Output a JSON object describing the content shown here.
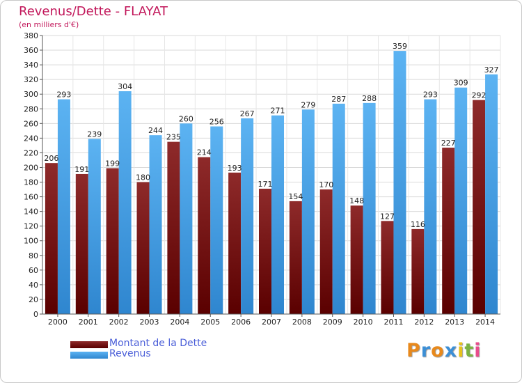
{
  "chart_data": {
    "type": "bar",
    "title": "Revenus/Dette - FLAYAT",
    "subtitle": "(en milliers d'€)",
    "categories": [
      "2000",
      "2001",
      "2002",
      "2003",
      "2004",
      "2005",
      "2006",
      "2007",
      "2008",
      "2009",
      "2010",
      "2011",
      "2012",
      "2013",
      "2014"
    ],
    "series": [
      {
        "name": "Montant de la Dette",
        "color": "#7b1a1a",
        "values": [
          206,
          191,
          199,
          180,
          235,
          214,
          193,
          171,
          154,
          170,
          148,
          127,
          116,
          227,
          292
        ]
      },
      {
        "name": "Revenus",
        "color": "#4aa3e6",
        "values": [
          293,
          239,
          304,
          244,
          260,
          256,
          267,
          271,
          279,
          287,
          288,
          359,
          293,
          309,
          327
        ]
      }
    ],
    "ylim": [
      0,
      380
    ],
    "yticks": [
      0,
      20,
      40,
      60,
      80,
      100,
      120,
      140,
      160,
      180,
      200,
      220,
      240,
      260,
      280,
      300,
      320,
      340,
      360,
      380
    ],
    "grid": true,
    "legend_placement": "bottom-left"
  },
  "logo": {
    "letters": [
      "P",
      "r",
      "o",
      "x",
      "i",
      "t",
      "i"
    ],
    "colors": [
      "#e8891c",
      "#3c8fd6",
      "#e8891c",
      "#3c8fd6",
      "#e8c21c",
      "#7cb342",
      "#e84c8c"
    ]
  }
}
